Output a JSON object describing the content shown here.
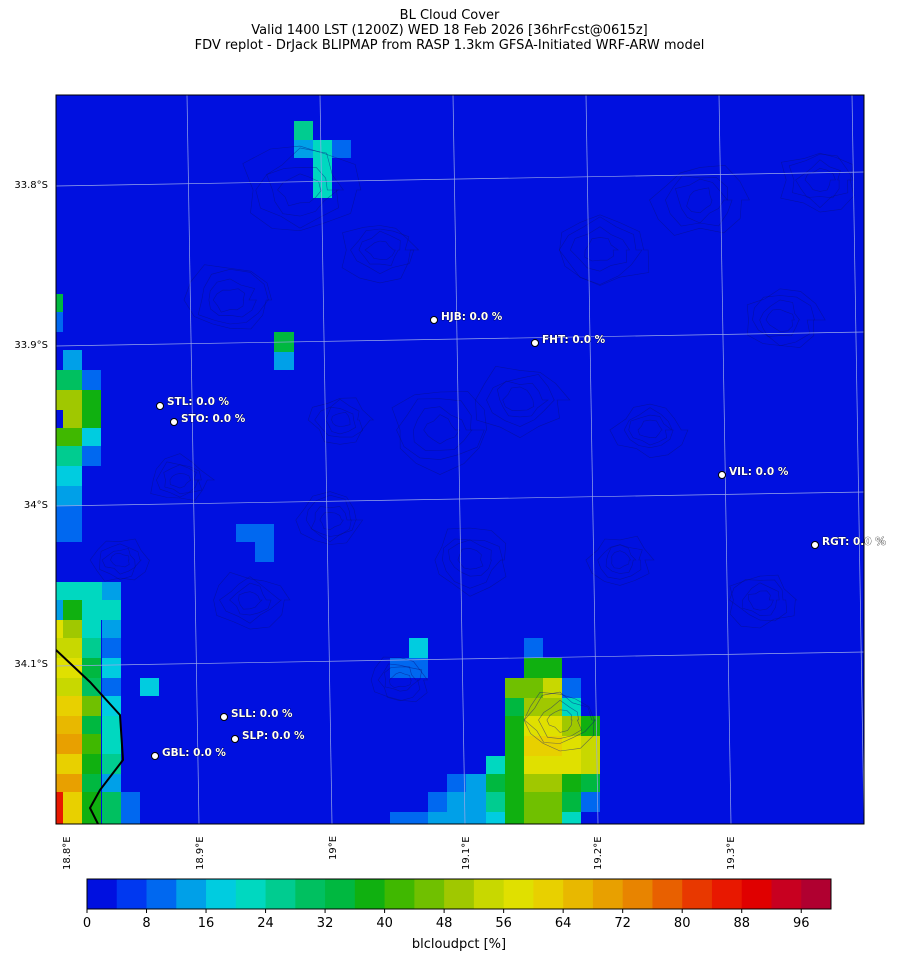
{
  "title": {
    "line1": "BL Cloud Cover",
    "line2": "Valid 1400 LST (1200Z) WED 18 Feb 2026 [36hrFcst@0615z]",
    "line3": "FDV replot - DrJack BLIPMAP from RASP 1.3km GFSA-Initiated WRF-ARW model"
  },
  "lat_labels": [
    "33.8°S",
    "33.9°S",
    "34°S",
    "34.1°S"
  ],
  "lon_labels": [
    "18.8°E",
    "18.9°E",
    "19°E",
    "19.1°E",
    "19.2°E",
    "19.3°E"
  ],
  "stations": [
    {
      "label": "HJB: 0.0 %",
      "value": 0.0
    },
    {
      "label": "FHT: 0.0 %",
      "value": 0.0
    },
    {
      "label": "STL: 0.0 %",
      "value": 0.0
    },
    {
      "label": "STO: 0.0 %",
      "value": 0.0
    },
    {
      "label": "VIL: 0.0 %",
      "value": 0.0
    },
    {
      "label": "RGT: 0.0 %",
      "value": 0.0
    },
    {
      "label": "SLL: 0.0 %",
      "value": 0.0
    },
    {
      "label": "SLP: 0.0 %",
      "value": 0.0
    },
    {
      "label": "GBL: 0.0 %",
      "value": 0.0
    }
  ],
  "colorbar": {
    "label": "blcloudpct [%]",
    "ticks": [
      "0",
      "8",
      "16",
      "24",
      "32",
      "40",
      "48",
      "56",
      "64",
      "72",
      "80",
      "88",
      "96"
    ],
    "range": [
      0,
      100
    ],
    "colors": [
      "#0010e0",
      "#0038f0",
      "#0068f0",
      "#00a0e8",
      "#00cce0",
      "#00d8c0",
      "#00cc90",
      "#00c060",
      "#00b840",
      "#10b010",
      "#40b800",
      "#70c000",
      "#a0c800",
      "#c8d800",
      "#e0e000",
      "#e8d000",
      "#e8b800",
      "#e8a000",
      "#e88400",
      "#e86000",
      "#e83800",
      "#e81800",
      "#e00000",
      "#c80020",
      "#b00030"
    ]
  },
  "map": {
    "background_color": "#0010e0",
    "data_note": ""
  }
}
